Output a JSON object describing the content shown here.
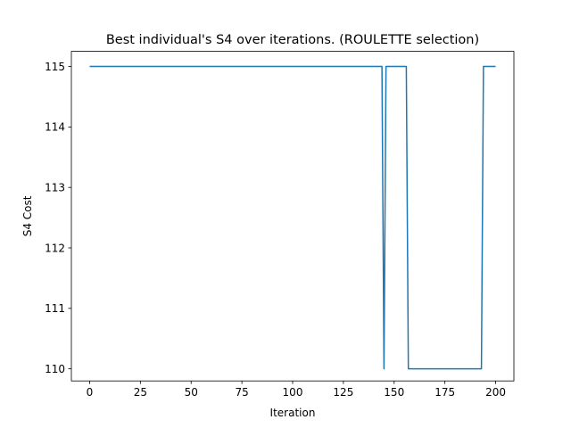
{
  "chart_data": {
    "type": "line",
    "title": "Best individual's S4 over iterations. (ROULETTE selection)",
    "xlabel": "Iteration",
    "ylabel": "S4 Cost",
    "xlim": [
      -9,
      209
    ],
    "ylim": [
      109.8,
      115.25
    ],
    "xticks": [
      0,
      25,
      50,
      75,
      100,
      125,
      150,
      175,
      200
    ],
    "yticks": [
      110,
      111,
      112,
      113,
      114,
      115
    ],
    "grid": false,
    "legend": "none",
    "series": [
      {
        "color": "#1f77b4",
        "x": [
          0,
          144,
          145,
          146,
          156,
          157,
          193,
          194,
          200
        ],
        "y": [
          115,
          115,
          110,
          115,
          115,
          110,
          110,
          115,
          115
        ]
      }
    ]
  }
}
